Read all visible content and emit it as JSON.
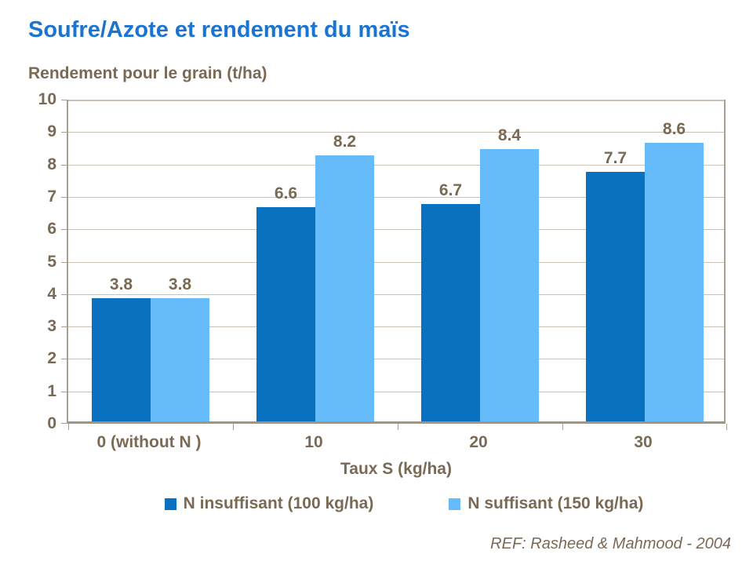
{
  "page_title": "Soufre/Azote et rendement du maïs",
  "chart_data": {
    "type": "bar",
    "title": "Soufre/Azote et rendement du maïs",
    "subtitle": "Rendement pour le grain (t/ha)",
    "categories": [
      "0 (without N )",
      "10",
      "20",
      "30"
    ],
    "series": [
      {
        "name": "N insuffisant (100 kg/ha)",
        "color": "#0a71c0",
        "values": [
          3.8,
          6.6,
          6.7,
          7.7
        ]
      },
      {
        "name": "N suffisant (150 kg/ha)",
        "color": "#66bbfa",
        "values": [
          3.8,
          8.2,
          8.4,
          8.6
        ]
      }
    ],
    "xlabel": "Taux S (kg/ha)",
    "ylabel": "Rendement pour le grain (t/ha)",
    "ylim": [
      0,
      10
    ],
    "ytick_step": 1,
    "grid": true,
    "legend_position": "bottom",
    "value_labels_decimals": 1
  },
  "footer": {
    "reference": "REF: Rasheed & Mahmood - 2004"
  },
  "colors": {
    "title_blue": "#1b74d0",
    "chart_text": "#7a6a55",
    "gridline": "#c9c1b6",
    "axis_bottom": "#a39381",
    "axis_side": "#a89f91",
    "background": "#ffffff"
  }
}
